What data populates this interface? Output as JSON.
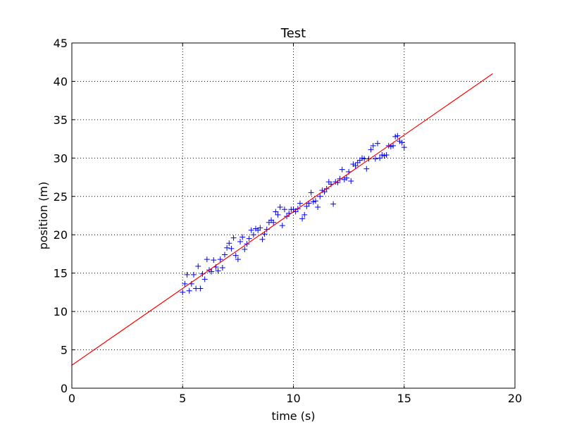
{
  "chart_data": {
    "type": "scatter",
    "title": "Test",
    "xlabel": "time (s)",
    "ylabel": "position (m)",
    "xlim": [
      0,
      20
    ],
    "ylim": [
      0,
      45
    ],
    "xticks": [
      0,
      5,
      10,
      15,
      20
    ],
    "yticks": [
      0,
      5,
      10,
      15,
      20,
      25,
      30,
      35,
      40,
      45
    ],
    "grid": true,
    "series": [
      {
        "kind": "scatter",
        "marker": "+",
        "color": "#0000ff",
        "points": [
          [
            5.0,
            12.5
          ],
          [
            5.1,
            13.6
          ],
          [
            5.2,
            14.8
          ],
          [
            5.3,
            12.7
          ],
          [
            5.4,
            13.6
          ],
          [
            5.5,
            14.8
          ],
          [
            5.6,
            13.0
          ],
          [
            5.7,
            15.9
          ],
          [
            5.8,
            13.0
          ],
          [
            5.9,
            14.9
          ],
          [
            6.0,
            14.2
          ],
          [
            6.1,
            16.8
          ],
          [
            6.2,
            15.4
          ],
          [
            6.3,
            15.2
          ],
          [
            6.4,
            16.7
          ],
          [
            6.5,
            15.8
          ],
          [
            6.6,
            15.3
          ],
          [
            6.7,
            16.8
          ],
          [
            6.8,
            15.7
          ],
          [
            6.9,
            17.4
          ],
          [
            7.0,
            18.3
          ],
          [
            7.1,
            18.9
          ],
          [
            7.2,
            18.2
          ],
          [
            7.3,
            19.6
          ],
          [
            7.4,
            17.3
          ],
          [
            7.5,
            16.8
          ],
          [
            7.6,
            19.1
          ],
          [
            7.7,
            19.7
          ],
          [
            7.8,
            18.1
          ],
          [
            7.9,
            18.8
          ],
          [
            8.0,
            19.5
          ],
          [
            8.1,
            20.6
          ],
          [
            8.2,
            20.0
          ],
          [
            8.3,
            20.8
          ],
          [
            8.4,
            20.6
          ],
          [
            8.5,
            20.9
          ],
          [
            8.6,
            19.4
          ],
          [
            8.7,
            20.1
          ],
          [
            8.8,
            20.7
          ],
          [
            8.9,
            21.6
          ],
          [
            9.0,
            21.9
          ],
          [
            9.1,
            21.6
          ],
          [
            9.2,
            23.0
          ],
          [
            9.3,
            22.6
          ],
          [
            9.4,
            23.6
          ],
          [
            9.5,
            21.2
          ],
          [
            9.6,
            23.3
          ],
          [
            9.7,
            22.4
          ],
          [
            9.8,
            22.8
          ],
          [
            9.9,
            23.3
          ],
          [
            10.0,
            23.3
          ],
          [
            10.1,
            23.0
          ],
          [
            10.2,
            23.4
          ],
          [
            10.3,
            24.1
          ],
          [
            10.4,
            22.1
          ],
          [
            10.5,
            22.6
          ],
          [
            10.6,
            23.7
          ],
          [
            10.7,
            24.1
          ],
          [
            10.8,
            25.5
          ],
          [
            10.9,
            24.3
          ],
          [
            11.0,
            24.4
          ],
          [
            11.1,
            23.6
          ],
          [
            11.2,
            25.0
          ],
          [
            11.3,
            25.8
          ],
          [
            11.4,
            25.6
          ],
          [
            11.5,
            26.0
          ],
          [
            11.6,
            26.9
          ],
          [
            11.7,
            26.6
          ],
          [
            11.8,
            24.0
          ],
          [
            11.9,
            26.9
          ],
          [
            12.0,
            26.8
          ],
          [
            12.1,
            27.3
          ],
          [
            12.2,
            28.5
          ],
          [
            12.3,
            27.2
          ],
          [
            12.4,
            27.4
          ],
          [
            12.5,
            28.2
          ],
          [
            12.6,
            27.0
          ],
          [
            12.7,
            29.2
          ],
          [
            12.8,
            29.0
          ],
          [
            12.9,
            29.4
          ],
          [
            13.0,
            29.7
          ],
          [
            13.1,
            30.0
          ],
          [
            13.2,
            29.9
          ],
          [
            13.3,
            28.6
          ],
          [
            13.4,
            29.9
          ],
          [
            13.5,
            31.1
          ],
          [
            13.6,
            31.6
          ],
          [
            13.7,
            29.9
          ],
          [
            13.8,
            31.9
          ],
          [
            13.9,
            30.0
          ],
          [
            14.0,
            30.4
          ],
          [
            14.1,
            30.3
          ],
          [
            14.2,
            30.4
          ],
          [
            14.3,
            31.6
          ],
          [
            14.4,
            31.5
          ],
          [
            14.5,
            31.6
          ],
          [
            14.6,
            32.8
          ],
          [
            14.7,
            32.9
          ],
          [
            14.8,
            32.2
          ],
          [
            14.9,
            32.0
          ],
          [
            15.0,
            31.4
          ]
        ]
      },
      {
        "kind": "line",
        "color": "#ff0000",
        "x": [
          0,
          19
        ],
        "y": [
          3.0,
          41.0
        ]
      }
    ]
  }
}
